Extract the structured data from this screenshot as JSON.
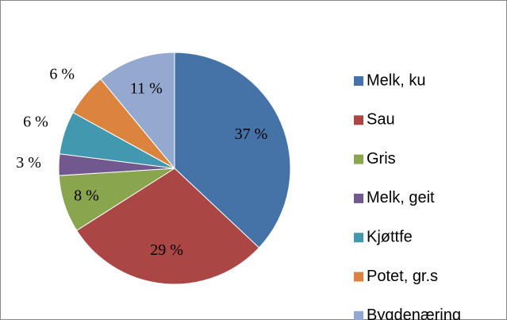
{
  "chart_data": {
    "type": "pie",
    "categories": [
      "Melk, ku",
      "Sau",
      "Gris",
      "Melk, geit",
      "Kjøttfe",
      "Potet, gr.s",
      "Bygdenæring"
    ],
    "values": [
      37,
      29,
      8,
      3,
      6,
      6,
      11
    ],
    "value_labels": [
      "37 %",
      "29 %",
      "8 %",
      "3 %",
      "6 %",
      "6 %",
      "11 %"
    ],
    "colors": [
      "#4572a7",
      "#aa4643",
      "#89a54e",
      "#71588f",
      "#4198af",
      "#db843d",
      "#93a9cf"
    ],
    "legend": "right"
  }
}
